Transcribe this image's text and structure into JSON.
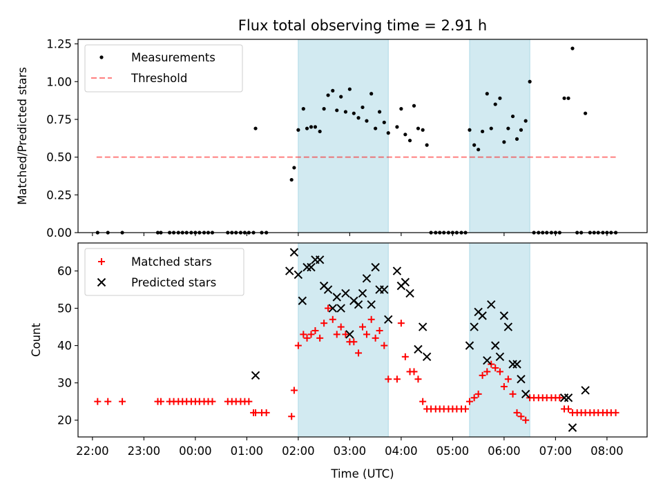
{
  "title": "Flux total observing time = 2.91 h",
  "colors": {
    "shade": "#add8e6",
    "measurements": "#000000",
    "threshold": "#ff0000",
    "matched": "#ff0000",
    "predicted": "#000000"
  },
  "chart_data": [
    {
      "type": "scatter",
      "ylabel": "Matched/Predicted stars",
      "ylim": [
        0,
        1.28
      ],
      "yticks": [
        0,
        0.25,
        0.5,
        0.75,
        1.0,
        1.25
      ],
      "ytick_labels": [
        "0.00",
        "0.25",
        "0.50",
        "0.75",
        "1.00",
        "1.25"
      ],
      "xlim_hours": [
        21.72,
        32.78
      ],
      "x_unit": "hours UTC from 00:00 of first night (values above 24 are next day)",
      "legend_position": "upper-left",
      "legend": [
        "Measurements",
        "Threshold"
      ],
      "shaded_intervals_hours": [
        [
          26.0,
          27.75
        ],
        [
          29.33,
          30.5
        ]
      ],
      "threshold": {
        "name": "Threshold",
        "value": 0.5,
        "x_range": [
          22.08,
          32.17
        ]
      },
      "measurements": {
        "name": "Measurements",
        "x": [
          22.1,
          22.3,
          22.58,
          23.27,
          23.33,
          23.5,
          23.58,
          23.67,
          23.75,
          23.83,
          23.92,
          24.0,
          24.08,
          24.17,
          24.25,
          24.33,
          24.63,
          24.71,
          24.79,
          24.88,
          24.96,
          25.04,
          25.13,
          25.17,
          25.29,
          25.38,
          25.87,
          25.92,
          26.0,
          26.1,
          26.17,
          26.25,
          26.33,
          26.42,
          26.5,
          26.58,
          26.67,
          26.75,
          26.83,
          26.92,
          27.0,
          27.08,
          27.17,
          27.25,
          27.33,
          27.42,
          27.5,
          27.58,
          27.67,
          27.75,
          27.92,
          28.0,
          28.08,
          28.17,
          28.25,
          28.33,
          28.42,
          28.5,
          28.58,
          28.67,
          28.75,
          28.83,
          28.92,
          29.0,
          29.08,
          29.17,
          29.25,
          29.33,
          29.42,
          29.5,
          29.58,
          29.67,
          29.75,
          29.83,
          29.92,
          30.0,
          30.08,
          30.17,
          30.25,
          30.33,
          30.42,
          30.5,
          30.58,
          30.67,
          30.75,
          30.83,
          30.92,
          31.0,
          31.08,
          31.17,
          31.25,
          31.33,
          31.42,
          31.5,
          31.58,
          31.67,
          31.75,
          31.83,
          31.92,
          32.0,
          32.08,
          32.17
        ],
        "y": [
          0,
          0,
          0,
          0,
          0,
          0,
          0,
          0,
          0,
          0,
          0,
          0,
          0,
          0,
          0,
          0,
          0,
          0,
          0,
          0,
          0,
          0,
          0,
          0.69,
          0,
          0,
          0.35,
          0.43,
          0.68,
          0.82,
          0.69,
          0.7,
          0.7,
          0.67,
          0.82,
          0.91,
          0.94,
          0.81,
          0.9,
          0.8,
          0.95,
          0.79,
          0.76,
          0.83,
          0.74,
          0.92,
          0.69,
          0.8,
          0.73,
          0.66,
          0.7,
          0.82,
          0.65,
          0.61,
          0.84,
          0.69,
          0.68,
          0.58,
          0,
          0,
          0,
          0,
          0,
          0,
          0,
          0,
          0,
          0.68,
          0.58,
          0.55,
          0.67,
          0.92,
          0.69,
          0.85,
          0.89,
          0.6,
          0.69,
          0.77,
          0.62,
          0.68,
          0.74,
          1.0,
          0,
          0,
          0,
          0,
          0,
          0,
          0,
          0.89,
          0.89,
          1.22,
          0,
          0,
          0.79,
          0,
          0,
          0,
          0,
          0,
          0,
          0
        ]
      }
    },
    {
      "type": "scatter",
      "xlabel": "Time (UTC)",
      "ylabel": "Count",
      "ylim": [
        15.5,
        67.5
      ],
      "yticks": [
        20,
        30,
        40,
        50,
        60
      ],
      "ytick_labels": [
        "20",
        "30",
        "40",
        "50",
        "60"
      ],
      "xlim_hours": [
        21.72,
        32.78
      ],
      "xticks_hours": [
        22,
        23,
        24,
        25,
        26,
        27,
        28,
        29,
        30,
        31,
        32
      ],
      "xtick_labels": [
        "22:00",
        "23:00",
        "00:00",
        "01:00",
        "02:00",
        "03:00",
        "04:00",
        "05:00",
        "06:00",
        "07:00",
        "08:00"
      ],
      "legend_position": "upper-left",
      "legend": [
        "Matched stars",
        "Predicted stars"
      ],
      "shaded_intervals_hours": [
        [
          26.0,
          27.75
        ],
        [
          29.33,
          30.5
        ]
      ],
      "matched": {
        "name": "Matched stars",
        "x": [
          22.1,
          22.3,
          22.58,
          23.27,
          23.33,
          23.5,
          23.58,
          23.67,
          23.75,
          23.83,
          23.92,
          24.0,
          24.08,
          24.17,
          24.25,
          24.33,
          24.63,
          24.71,
          24.79,
          24.88,
          24.96,
          25.04,
          25.13,
          25.17,
          25.29,
          25.38,
          25.87,
          25.92,
          26.0,
          26.1,
          26.17,
          26.25,
          26.33,
          26.42,
          26.5,
          26.58,
          26.67,
          26.75,
          26.83,
          26.92,
          27.0,
          27.08,
          27.17,
          27.25,
          27.33,
          27.42,
          27.5,
          27.58,
          27.67,
          27.75,
          27.92,
          28.0,
          28.08,
          28.17,
          28.25,
          28.33,
          28.42,
          28.5,
          28.58,
          28.67,
          28.75,
          28.83,
          28.92,
          29.0,
          29.08,
          29.17,
          29.25,
          29.33,
          29.42,
          29.5,
          29.58,
          29.67,
          29.75,
          29.83,
          29.92,
          30.0,
          30.08,
          30.17,
          30.25,
          30.33,
          30.42,
          30.5,
          30.58,
          30.67,
          30.75,
          30.83,
          30.92,
          31.0,
          31.08,
          31.17,
          31.25,
          31.33,
          31.42,
          31.5,
          31.58,
          31.67,
          31.75,
          31.83,
          31.92,
          32.0,
          32.08,
          32.17
        ],
        "y": [
          25,
          25,
          25,
          25,
          25,
          25,
          25,
          25,
          25,
          25,
          25,
          25,
          25,
          25,
          25,
          25,
          25,
          25,
          25,
          25,
          25,
          25,
          22,
          22,
          22,
          22,
          21,
          28,
          40,
          43,
          42,
          43,
          44,
          42,
          46,
          50,
          47,
          43,
          45,
          43,
          41,
          41,
          38,
          45,
          43,
          47,
          42,
          44,
          40,
          31,
          31,
          46,
          37,
          33,
          33,
          31,
          25,
          23,
          23,
          23,
          23,
          23,
          23,
          23,
          23,
          23,
          23,
          25,
          26,
          27,
          32,
          33,
          35,
          34,
          33,
          29,
          31,
          27,
          22,
          21,
          20,
          26,
          26,
          26,
          26,
          26,
          26,
          26,
          26,
          23,
          23,
          22,
          22,
          22,
          22,
          22,
          22,
          22,
          22,
          22,
          22,
          22
        ]
      },
      "predicted": {
        "name": "Predicted stars",
        "x": [
          25.17,
          25.83,
          25.92,
          26.0,
          26.08,
          26.17,
          26.25,
          26.33,
          26.42,
          26.5,
          26.58,
          26.67,
          26.75,
          26.83,
          26.92,
          27.0,
          27.08,
          27.17,
          27.25,
          27.33,
          27.42,
          27.5,
          27.58,
          27.67,
          27.75,
          27.92,
          28.0,
          28.08,
          28.17,
          28.33,
          28.42,
          28.5,
          29.33,
          29.42,
          29.5,
          29.58,
          29.67,
          29.75,
          29.83,
          29.92,
          30.0,
          30.08,
          30.17,
          30.25,
          30.33,
          30.42,
          31.17,
          31.25,
          31.33,
          31.58
        ],
        "y": [
          32,
          60,
          65,
          59,
          52,
          61,
          61,
          63,
          63,
          56,
          55,
          50,
          53,
          50,
          54,
          43,
          52,
          51,
          54,
          58,
          51,
          61,
          55,
          55,
          47,
          60,
          56,
          57,
          54,
          39,
          45,
          37,
          40,
          45,
          49,
          48,
          36,
          51,
          40,
          37,
          48,
          45,
          35,
          35,
          31,
          27,
          26,
          26,
          18,
          28
        ]
      }
    }
  ]
}
